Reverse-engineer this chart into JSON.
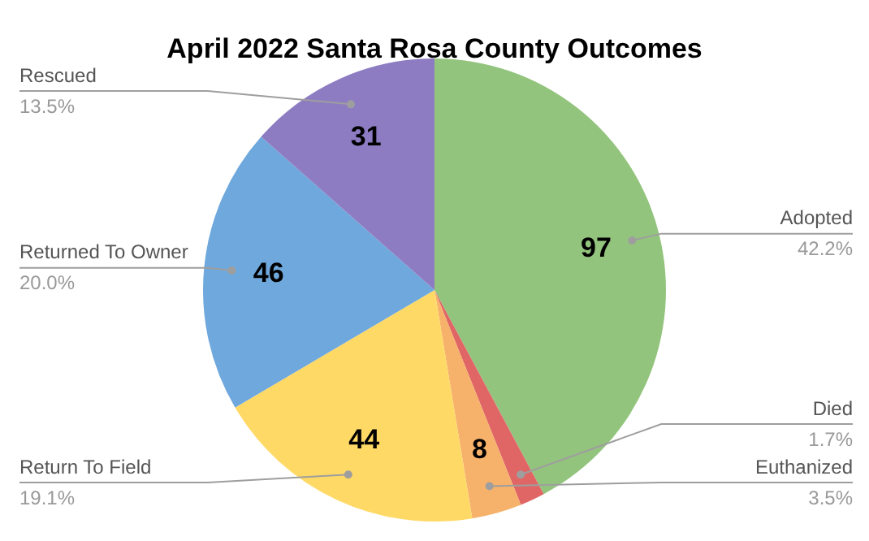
{
  "chart_data": {
    "type": "pie",
    "title": "April 2022 Santa Rosa County Outcomes",
    "categories": [
      "Adopted",
      "Died",
      "Euthanized",
      "Return To Field",
      "Returned To Owner",
      "Rescued"
    ],
    "values": [
      97,
      4,
      8,
      44,
      46,
      31
    ],
    "colors": [
      "#93c47d",
      "#e06666",
      "#f6b26b",
      "#ffd966",
      "#6fa8dc",
      "#8e7cc3"
    ],
    "value_labels": [
      "97",
      null,
      "8",
      "44",
      "46",
      "31"
    ],
    "annotations": [
      {
        "text": "42.2%",
        "x": "Adopted"
      },
      {
        "text": "1.7%",
        "x": "Died"
      },
      {
        "text": "3.5%",
        "x": "Euthanized"
      },
      {
        "text": "19.1%",
        "x": "Return To Field"
      },
      {
        "text": "20.0%",
        "x": "Returned To Owner"
      },
      {
        "text": "13.5%",
        "x": "Rescued"
      }
    ],
    "legend": false
  }
}
